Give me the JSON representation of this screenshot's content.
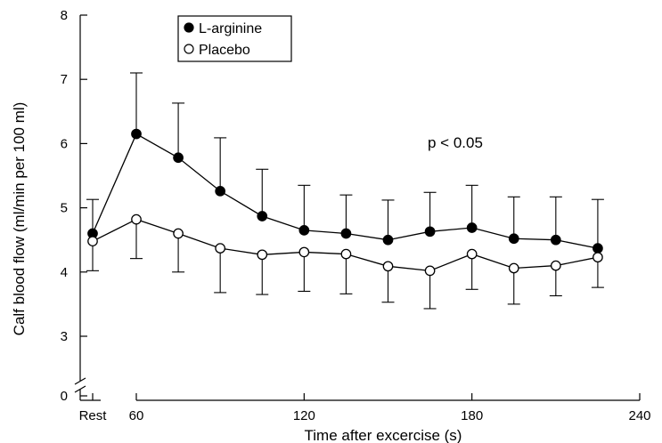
{
  "chart_data": {
    "type": "line",
    "title": "",
    "xlabel": "Time after excercise (s)",
    "ylabel": "Calf blood flow (ml/min per 100 ml)",
    "x_axis": {
      "range": [
        45,
        240
      ],
      "ticks": [
        60,
        120,
        180,
        240
      ],
      "tick_labels": [
        "60",
        "120",
        "180",
        "240"
      ],
      "rest_label": "Rest",
      "axis_break": true
    },
    "y_axis": {
      "range": [
        2.6,
        8
      ],
      "ticks": [
        3,
        4,
        5,
        6,
        7,
        8
      ],
      "tick_labels": [
        "3",
        "4",
        "5",
        "6",
        "7",
        "8"
      ],
      "zero_label": "0",
      "axis_break": true
    },
    "x": [
      "Rest",
      60,
      75,
      90,
      105,
      120,
      135,
      150,
      165,
      180,
      195,
      210,
      225
    ],
    "series": [
      {
        "name": "L-arginine",
        "marker": "filled-circle",
        "values": [
          4.6,
          6.15,
          5.78,
          5.26,
          4.87,
          4.65,
          4.6,
          4.5,
          4.63,
          4.69,
          4.52,
          4.5,
          4.37
        ],
        "error_upper": [
          5.13,
          7.1,
          6.63,
          6.09,
          5.6,
          5.35,
          5.2,
          5.12,
          5.24,
          5.35,
          5.17,
          5.17,
          5.13
        ]
      },
      {
        "name": "Placebo",
        "marker": "open-circle",
        "values": [
          4.48,
          4.82,
          4.6,
          4.37,
          4.27,
          4.31,
          4.28,
          4.09,
          4.02,
          4.28,
          4.06,
          4.1,
          4.23
        ],
        "error_lower": [
          4.02,
          4.21,
          4.0,
          3.68,
          3.65,
          3.7,
          3.66,
          3.53,
          3.43,
          3.73,
          3.5,
          3.63,
          3.76
        ]
      }
    ],
    "annotations": [
      {
        "text": "p < 0.05",
        "x": 157,
        "y": 6.1
      }
    ],
    "legend": {
      "position": "top-left",
      "entries": [
        "L-arginine",
        "Placebo"
      ]
    },
    "grid": false
  }
}
